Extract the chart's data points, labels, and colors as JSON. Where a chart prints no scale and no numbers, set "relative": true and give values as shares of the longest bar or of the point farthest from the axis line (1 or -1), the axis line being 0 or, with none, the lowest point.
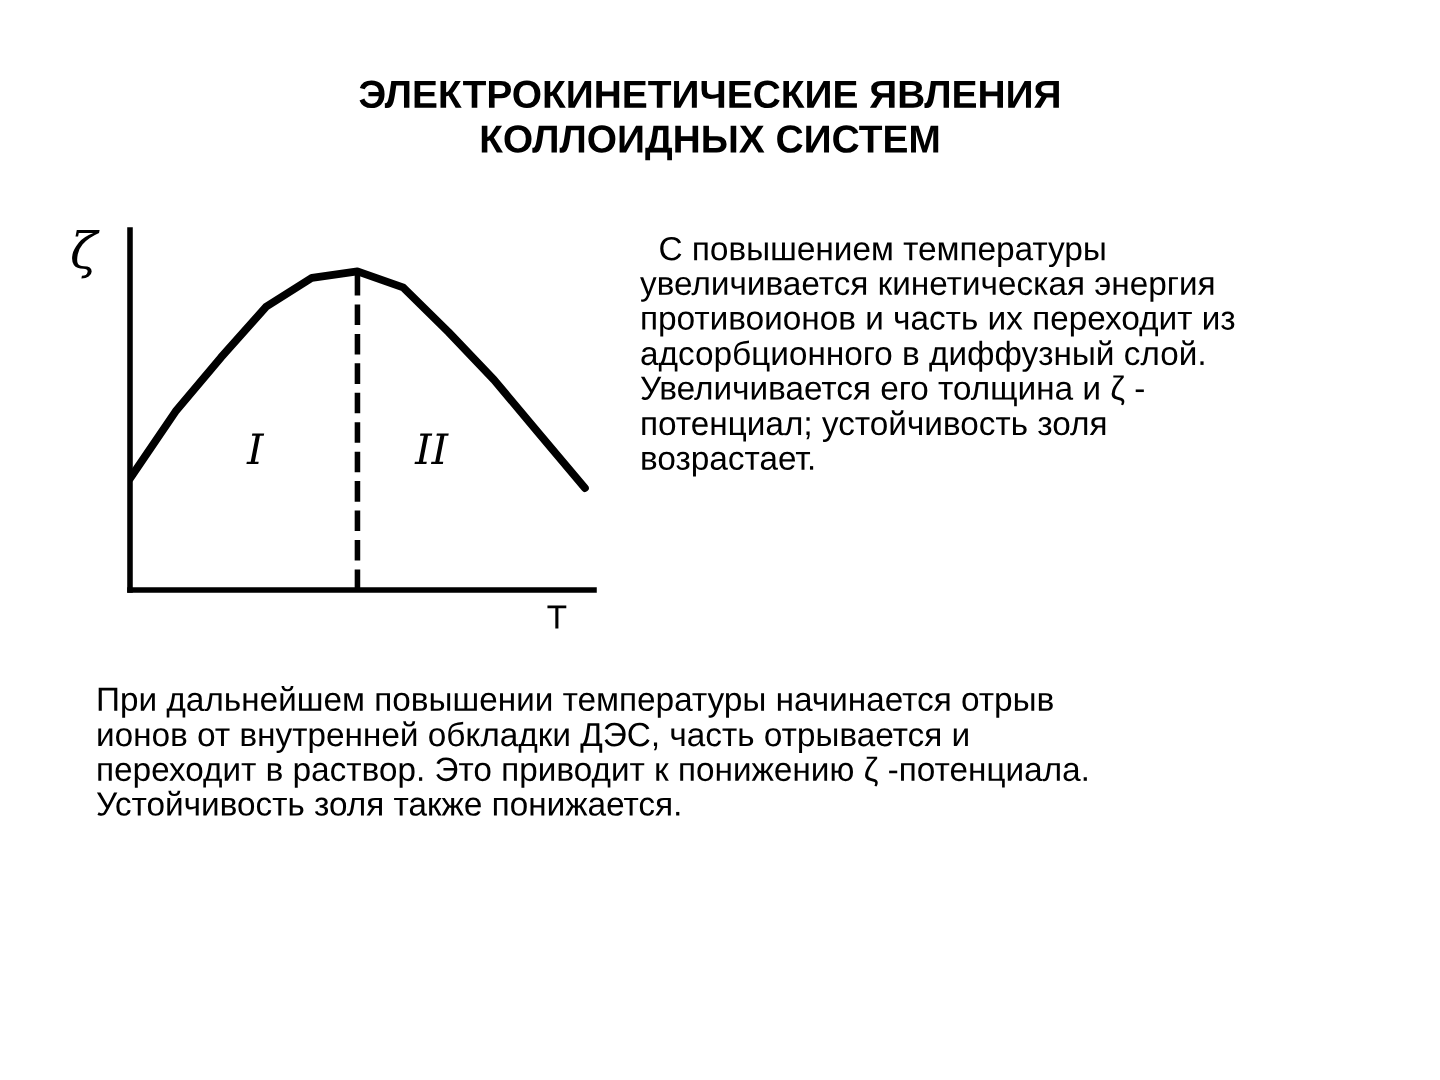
{
  "chart_data": {
    "type": "line",
    "title": "ЭЛЕКТРОКИНЕТИЧЕСКИЕ ЯВЛЕНИЯ\nКОЛЛОИДНЫХ СИСТЕМ",
    "xlabel": "T",
    "ylabel": "ζ",
    "relative": true,
    "categories": [
      null,
      null,
      null,
      null,
      null,
      null,
      null,
      null,
      null,
      null,
      null
    ],
    "series": [
      {
        "color": "#000000",
        "values": [
          0.35,
          0.56,
          0.73,
          0.89,
          0.98,
          1.0,
          0.95,
          0.81,
          0.66,
          0.49,
          0.32
        ]
      }
    ],
    "marker": "none",
    "line_style": "solid",
    "legend": false,
    "annotations": [
      "I",
      "II",
      "  С повышением температуры\nувеличивается кинетическая энергия\nпротивоионов и часть их переходит из\nадсорбционного в диффузный слой.\nУвеличивается его толщина и ζ -\nпотенциал; устойчивость золя\nвозрастает.",
      "При дальнейшем повышении температуры начинается отрыв\nионов от внутренней обкладки ДЭС, часть отрывается и\nпереходит в раствор. Это приводит к понижению ζ -потенциала.\nУстойчивость золя также понижается."
    ]
  }
}
